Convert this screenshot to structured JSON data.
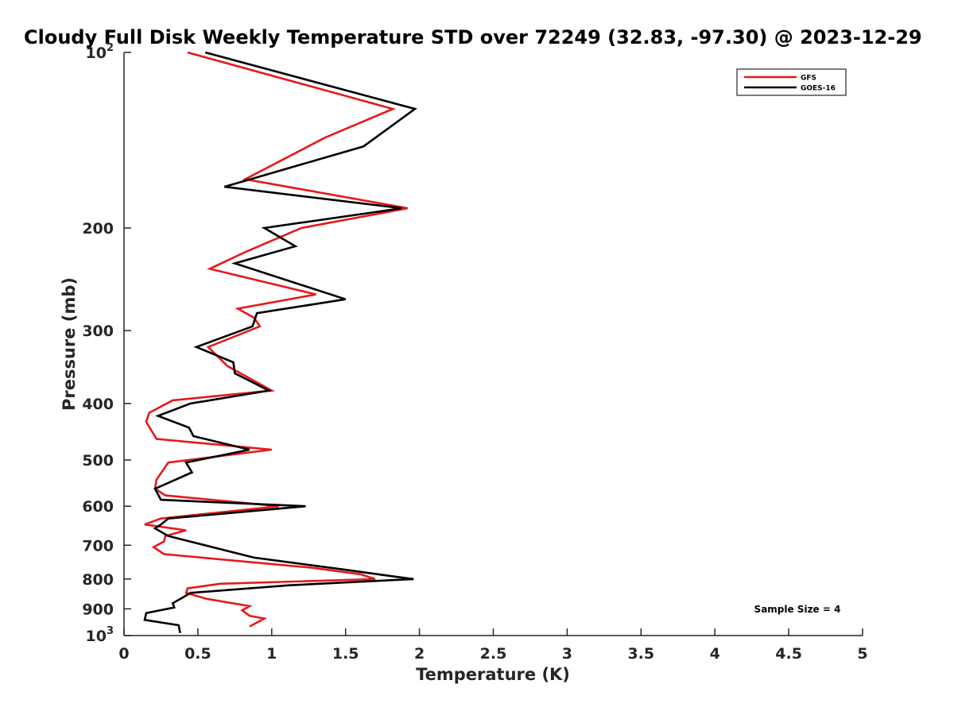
{
  "chart_data": {
    "type": "line",
    "title": "Cloudy Full Disk Weekly Temperature STD over 72249 (32.83, -97.30) @ 2023-12-29",
    "xlabel": "Temperature (K)",
    "ylabel": "Pressure (mb)",
    "xlim": [
      0,
      5
    ],
    "ylim": [
      1000,
      100
    ],
    "yscale": "log",
    "y_reversed": true,
    "grid": false,
    "legend_position": "top-right",
    "x_ticks": [
      "0",
      "0.5",
      "1",
      "1.5",
      "2",
      "2.5",
      "3",
      "3.5",
      "4",
      "4.5",
      "5"
    ],
    "y_ticks": [
      {
        "value": 100,
        "label": "10",
        "sup": "2"
      },
      {
        "value": 200,
        "label": "200",
        "sup": ""
      },
      {
        "value": 300,
        "label": "300",
        "sup": ""
      },
      {
        "value": 400,
        "label": "400",
        "sup": ""
      },
      {
        "value": 500,
        "label": "500",
        "sup": ""
      },
      {
        "value": 600,
        "label": "600",
        "sup": ""
      },
      {
        "value": 700,
        "label": "700",
        "sup": ""
      },
      {
        "value": 800,
        "label": "800",
        "sup": ""
      },
      {
        "value": 900,
        "label": "900",
        "sup": ""
      },
      {
        "value": 1000,
        "label": "10",
        "sup": "3"
      }
    ],
    "series": [
      {
        "name": "GFS",
        "color": "#e41a1c",
        "points": [
          [
            0.43,
            100
          ],
          [
            1.82,
            125
          ],
          [
            1.36,
            140
          ],
          [
            0.82,
            165
          ],
          [
            1.92,
            185
          ],
          [
            1.2,
            200
          ],
          [
            0.82,
            220
          ],
          [
            0.58,
            235
          ],
          [
            1.3,
            260
          ],
          [
            0.77,
            275
          ],
          [
            0.88,
            285
          ],
          [
            0.92,
            295
          ],
          [
            0.57,
            320
          ],
          [
            0.7,
            345
          ],
          [
            1.0,
            380
          ],
          [
            0.33,
            395
          ],
          [
            0.17,
            415
          ],
          [
            0.15,
            430
          ],
          [
            0.22,
            460
          ],
          [
            1.0,
            480
          ],
          [
            0.3,
            505
          ],
          [
            0.22,
            540
          ],
          [
            0.21,
            560
          ],
          [
            0.28,
            575
          ],
          [
            1.05,
            600
          ],
          [
            0.25,
            630
          ],
          [
            0.14,
            645
          ],
          [
            0.42,
            660
          ],
          [
            0.28,
            675
          ],
          [
            0.27,
            690
          ],
          [
            0.2,
            705
          ],
          [
            0.27,
            725
          ],
          [
            1.27,
            765
          ],
          [
            1.6,
            785
          ],
          [
            1.7,
            800
          ],
          [
            0.65,
            815
          ],
          [
            0.43,
            830
          ],
          [
            0.42,
            845
          ],
          [
            0.56,
            865
          ],
          [
            0.85,
            890
          ],
          [
            0.8,
            905
          ],
          [
            0.85,
            925
          ],
          [
            0.95,
            935
          ],
          [
            0.85,
            965
          ]
        ]
      },
      {
        "name": "GOES-16",
        "color": "#000000",
        "points": [
          [
            0.55,
            100
          ],
          [
            1.97,
            125
          ],
          [
            1.62,
            145
          ],
          [
            0.68,
            170
          ],
          [
            1.88,
            185
          ],
          [
            0.95,
            200
          ],
          [
            1.16,
            215
          ],
          [
            0.75,
            230
          ],
          [
            1.5,
            265
          ],
          [
            0.9,
            280
          ],
          [
            0.87,
            295
          ],
          [
            0.49,
            320
          ],
          [
            0.74,
            340
          ],
          [
            0.75,
            355
          ],
          [
            0.98,
            380
          ],
          [
            0.45,
            400
          ],
          [
            0.23,
            420
          ],
          [
            0.44,
            440
          ],
          [
            0.47,
            455
          ],
          [
            0.85,
            480
          ],
          [
            0.42,
            505
          ],
          [
            0.46,
            525
          ],
          [
            0.21,
            560
          ],
          [
            0.25,
            585
          ],
          [
            1.23,
            600
          ],
          [
            0.3,
            630
          ],
          [
            0.25,
            645
          ],
          [
            0.21,
            655
          ],
          [
            0.3,
            675
          ],
          [
            0.88,
            735
          ],
          [
            1.48,
            770
          ],
          [
            1.8,
            790
          ],
          [
            1.96,
            800
          ],
          [
            1.12,
            820
          ],
          [
            0.45,
            845
          ],
          [
            0.4,
            860
          ],
          [
            0.33,
            880
          ],
          [
            0.34,
            895
          ],
          [
            0.15,
            915
          ],
          [
            0.14,
            940
          ],
          [
            0.37,
            960
          ],
          [
            0.38,
            990
          ]
        ]
      }
    ],
    "annotations": [
      "Sample Size = 4"
    ]
  }
}
